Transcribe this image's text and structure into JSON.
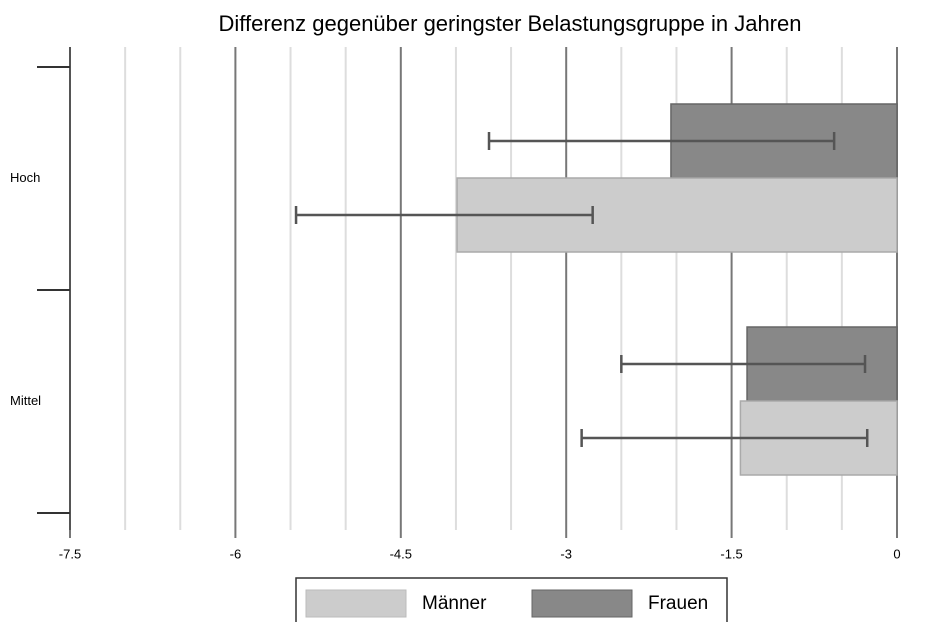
{
  "chart_data": {
    "type": "hbar",
    "title": "Differenz gegenüber geringster Belastungsgruppe in Jahren",
    "categories": [
      "Hoch",
      "Mittel"
    ],
    "series": [
      {
        "name": "Frauen",
        "color": "#888888",
        "values": [
          -2.05,
          -1.36
        ],
        "lower": [
          -3.7,
          -2.5
        ],
        "upper": [
          -0.57,
          -0.29
        ]
      },
      {
        "name": "Männer",
        "color": "#cccccc",
        "values": [
          -3.99,
          -1.42
        ],
        "lower": [
          -5.45,
          -2.86
        ],
        "upper": [
          -2.76,
          -0.27
        ]
      }
    ],
    "legend_order": [
      1,
      0
    ],
    "xlim": [
      -7.5,
      0
    ],
    "xticks": [
      -7.5,
      -6,
      -4.5,
      -3,
      -1.5,
      0
    ],
    "xminor": [
      -7,
      -6.5,
      -5.5,
      -5,
      -4,
      -3.5,
      -2.5,
      -2,
      -1,
      -0.5
    ],
    "grid": true
  }
}
